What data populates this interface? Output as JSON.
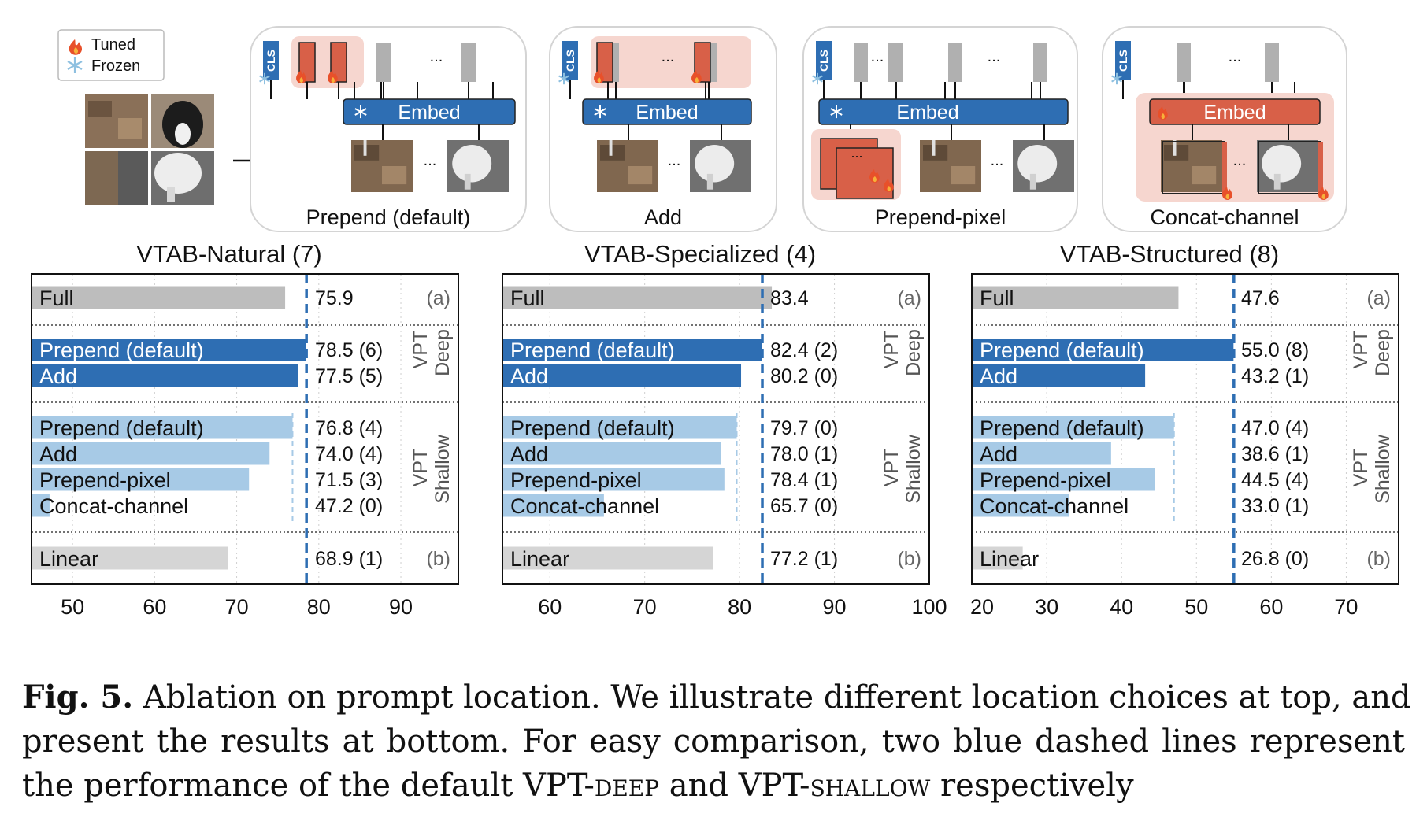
{
  "legend": {
    "tuned": "Tuned",
    "frozen": "Frozen"
  },
  "diagram": {
    "cls_label": "CLS",
    "embed_label": "Embed",
    "ellipsis": "...",
    "panels": [
      {
        "title": "Prepend (default)"
      },
      {
        "title": "Add"
      },
      {
        "title": "Prepend-pixel"
      },
      {
        "title": "Concat-channel"
      }
    ]
  },
  "colors": {
    "full_bar": "#bdbdbd",
    "deep_bar": "#2e6eb3",
    "shallow_bar": "#a7cae6",
    "linear_bar": "#d5d5d5",
    "dashed_line": "#2e6eb3",
    "tuned_fill": "#d86048",
    "tuned_bg": "#f6d6cf",
    "embed_blue": "#2e6eb3"
  },
  "chart_data": [
    {
      "type": "bar",
      "title": "VTAB-Natural (7)",
      "xlim": [
        45,
        97
      ],
      "xticks": [
        50,
        60,
        70,
        80,
        90
      ],
      "deep_ref": 78.5,
      "shallow_ref": 76.8,
      "group_labels": {
        "deep_1": "VPT",
        "deep_2": "Deep",
        "shallow_1": "VPT",
        "shallow_2": "Shallow",
        "full": "(a)",
        "linear": "(b)"
      },
      "bars": [
        {
          "label": "Full",
          "value": 75.9,
          "value_label": "75.9",
          "group": "full"
        },
        {
          "label": "Prepend (default)",
          "value": 78.5,
          "value_label": "78.5 (6)",
          "group": "deep"
        },
        {
          "label": "Add",
          "value": 77.5,
          "value_label": "77.5 (5)",
          "group": "deep"
        },
        {
          "label": "Prepend (default)",
          "value": 76.8,
          "value_label": "76.8 (4)",
          "group": "shallow"
        },
        {
          "label": "Add",
          "value": 74.0,
          "value_label": "74.0 (4)",
          "group": "shallow"
        },
        {
          "label": "Prepend-pixel",
          "value": 71.5,
          "value_label": "71.5 (3)",
          "group": "shallow"
        },
        {
          "label": "Concat-channel",
          "value": 47.2,
          "value_label": "47.2 (0)",
          "group": "shallow"
        },
        {
          "label": "Linear",
          "value": 68.9,
          "value_label": "68.9 (1)",
          "group": "linear"
        }
      ]
    },
    {
      "type": "bar",
      "title": "VTAB-Specialized (4)",
      "xlim": [
        55,
        100
      ],
      "xticks": [
        60,
        70,
        80,
        90,
        100
      ],
      "deep_ref": 82.4,
      "shallow_ref": 79.7,
      "group_labels": {
        "deep_1": "VPT",
        "deep_2": "Deep",
        "shallow_1": "VPT",
        "shallow_2": "Shallow",
        "full": "(a)",
        "linear": "(b)"
      },
      "bars": [
        {
          "label": "Full",
          "value": 83.4,
          "value_label": "83.4",
          "group": "full"
        },
        {
          "label": "Prepend (default)",
          "value": 82.4,
          "value_label": "82.4 (2)",
          "group": "deep"
        },
        {
          "label": "Add",
          "value": 80.2,
          "value_label": "80.2 (0)",
          "group": "deep"
        },
        {
          "label": "Prepend (default)",
          "value": 79.7,
          "value_label": "79.7 (0)",
          "group": "shallow"
        },
        {
          "label": "Add",
          "value": 78.0,
          "value_label": "78.0 (1)",
          "group": "shallow"
        },
        {
          "label": "Prepend-pixel",
          "value": 78.4,
          "value_label": "78.4 (1)",
          "group": "shallow"
        },
        {
          "label": "Concat-channel",
          "value": 65.7,
          "value_label": "65.7 (0)",
          "group": "shallow"
        },
        {
          "label": "Linear",
          "value": 77.2,
          "value_label": "77.2 (1)",
          "group": "linear"
        }
      ]
    },
    {
      "type": "bar",
      "title": "VTAB-Structured (8)",
      "xlim": [
        20,
        77
      ],
      "xticks": [
        20,
        30,
        40,
        50,
        60,
        70
      ],
      "deep_ref": 55.0,
      "shallow_ref": 47.0,
      "group_labels": {
        "deep_1": "VPT",
        "deep_2": "Deep",
        "shallow_1": "VPT",
        "shallow_2": "Shallow",
        "full": "(a)",
        "linear": "(b)"
      },
      "bars": [
        {
          "label": "Full",
          "value": 47.6,
          "value_label": "47.6",
          "group": "full"
        },
        {
          "label": "Prepend (default)",
          "value": 55.0,
          "value_label": "55.0 (8)",
          "group": "deep"
        },
        {
          "label": "Add",
          "value": 43.2,
          "value_label": "43.2 (1)",
          "group": "deep"
        },
        {
          "label": "Prepend (default)",
          "value": 47.0,
          "value_label": "47.0 (4)",
          "group": "shallow"
        },
        {
          "label": "Add",
          "value": 38.6,
          "value_label": "38.6 (1)",
          "group": "shallow"
        },
        {
          "label": "Prepend-pixel",
          "value": 44.5,
          "value_label": "44.5 (4)",
          "group": "shallow"
        },
        {
          "label": "Concat-channel",
          "value": 33.0,
          "value_label": "33.0 (1)",
          "group": "shallow"
        },
        {
          "label": "Linear",
          "value": 26.8,
          "value_label": "26.8 (0)",
          "group": "linear"
        }
      ]
    }
  ],
  "caption": {
    "fig_label": "Fig. 5.",
    "line1": "Ablation on prompt location. We illustrate different location choices at top, and",
    "line2": "present the results at bottom. For easy comparison, two blue dashed lines represent",
    "line3_a": "the performance of the default VPT-",
    "line3_b": "deep",
    "line3_c": " and VPT-",
    "line3_d": "shallow",
    "line3_e": " respectively"
  }
}
